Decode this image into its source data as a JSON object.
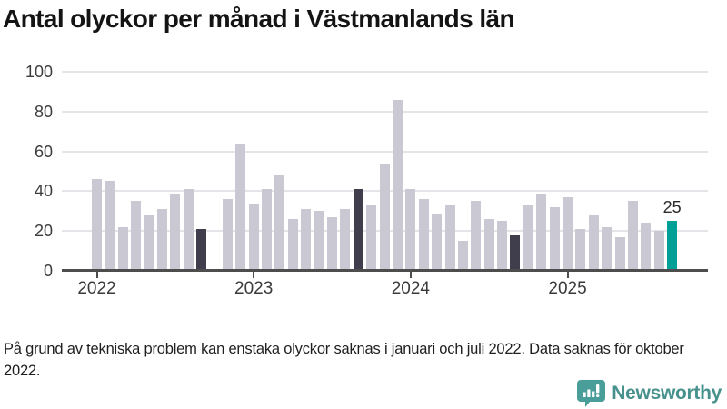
{
  "page": {
    "title": "Antal olyckor per månad i Västmanlands län",
    "footnote": "På grund av tekniska problem kan enstaka olyckor saknas i januari och juli 2022. Data saknas för oktober 2022.",
    "brand": "Newsworthy"
  },
  "chart_data": {
    "type": "bar",
    "title": "Antal olyckor per månad i Västmanlands län",
    "x": [
      "2022-01",
      "2022-02",
      "2022-03",
      "2022-04",
      "2022-05",
      "2022-06",
      "2022-07",
      "2022-08",
      "2022-09",
      "2022-10",
      "2022-11",
      "2022-12",
      "2023-01",
      "2023-02",
      "2023-03",
      "2023-04",
      "2023-05",
      "2023-06",
      "2023-07",
      "2023-08",
      "2023-09",
      "2023-10",
      "2023-11",
      "2023-12",
      "2024-01",
      "2024-02",
      "2024-03",
      "2024-04",
      "2024-05",
      "2024-06",
      "2024-07",
      "2024-08",
      "2024-09",
      "2024-10",
      "2024-11",
      "2024-12",
      "2025-01",
      "2025-02",
      "2025-03",
      "2025-04",
      "2025-05",
      "2025-06",
      "2025-07",
      "2025-08",
      "2025-09"
    ],
    "values": [
      46,
      45,
      22,
      35,
      28,
      31,
      39,
      41,
      21,
      null,
      36,
      64,
      34,
      41,
      48,
      26,
      31,
      30,
      27,
      31,
      41,
      33,
      54,
      86,
      41,
      36,
      29,
      33,
      15,
      35,
      26,
      25,
      18,
      33,
      39,
      32,
      37,
      21,
      28,
      22,
      17,
      35,
      24,
      20,
      25
    ],
    "missing_months": [
      "2022-10"
    ],
    "highlight_dark_months": [
      "2022-09",
      "2023-09",
      "2024-09"
    ],
    "highlight_accent_month": "2025-09",
    "annotation": {
      "x": "2025-09",
      "label": "25"
    },
    "yticks": [
      0,
      20,
      40,
      60,
      80,
      100
    ],
    "ylim": [
      0,
      100
    ],
    "xticks": [
      "2022",
      "2023",
      "2024",
      "2025"
    ],
    "grid": true,
    "colors": {
      "bar_default": "#cac8d3",
      "bar_dark": "#403e4c",
      "bar_accent": "#00a096",
      "gridline": "#e5e4e9",
      "axis": "#4d4d4d"
    }
  }
}
